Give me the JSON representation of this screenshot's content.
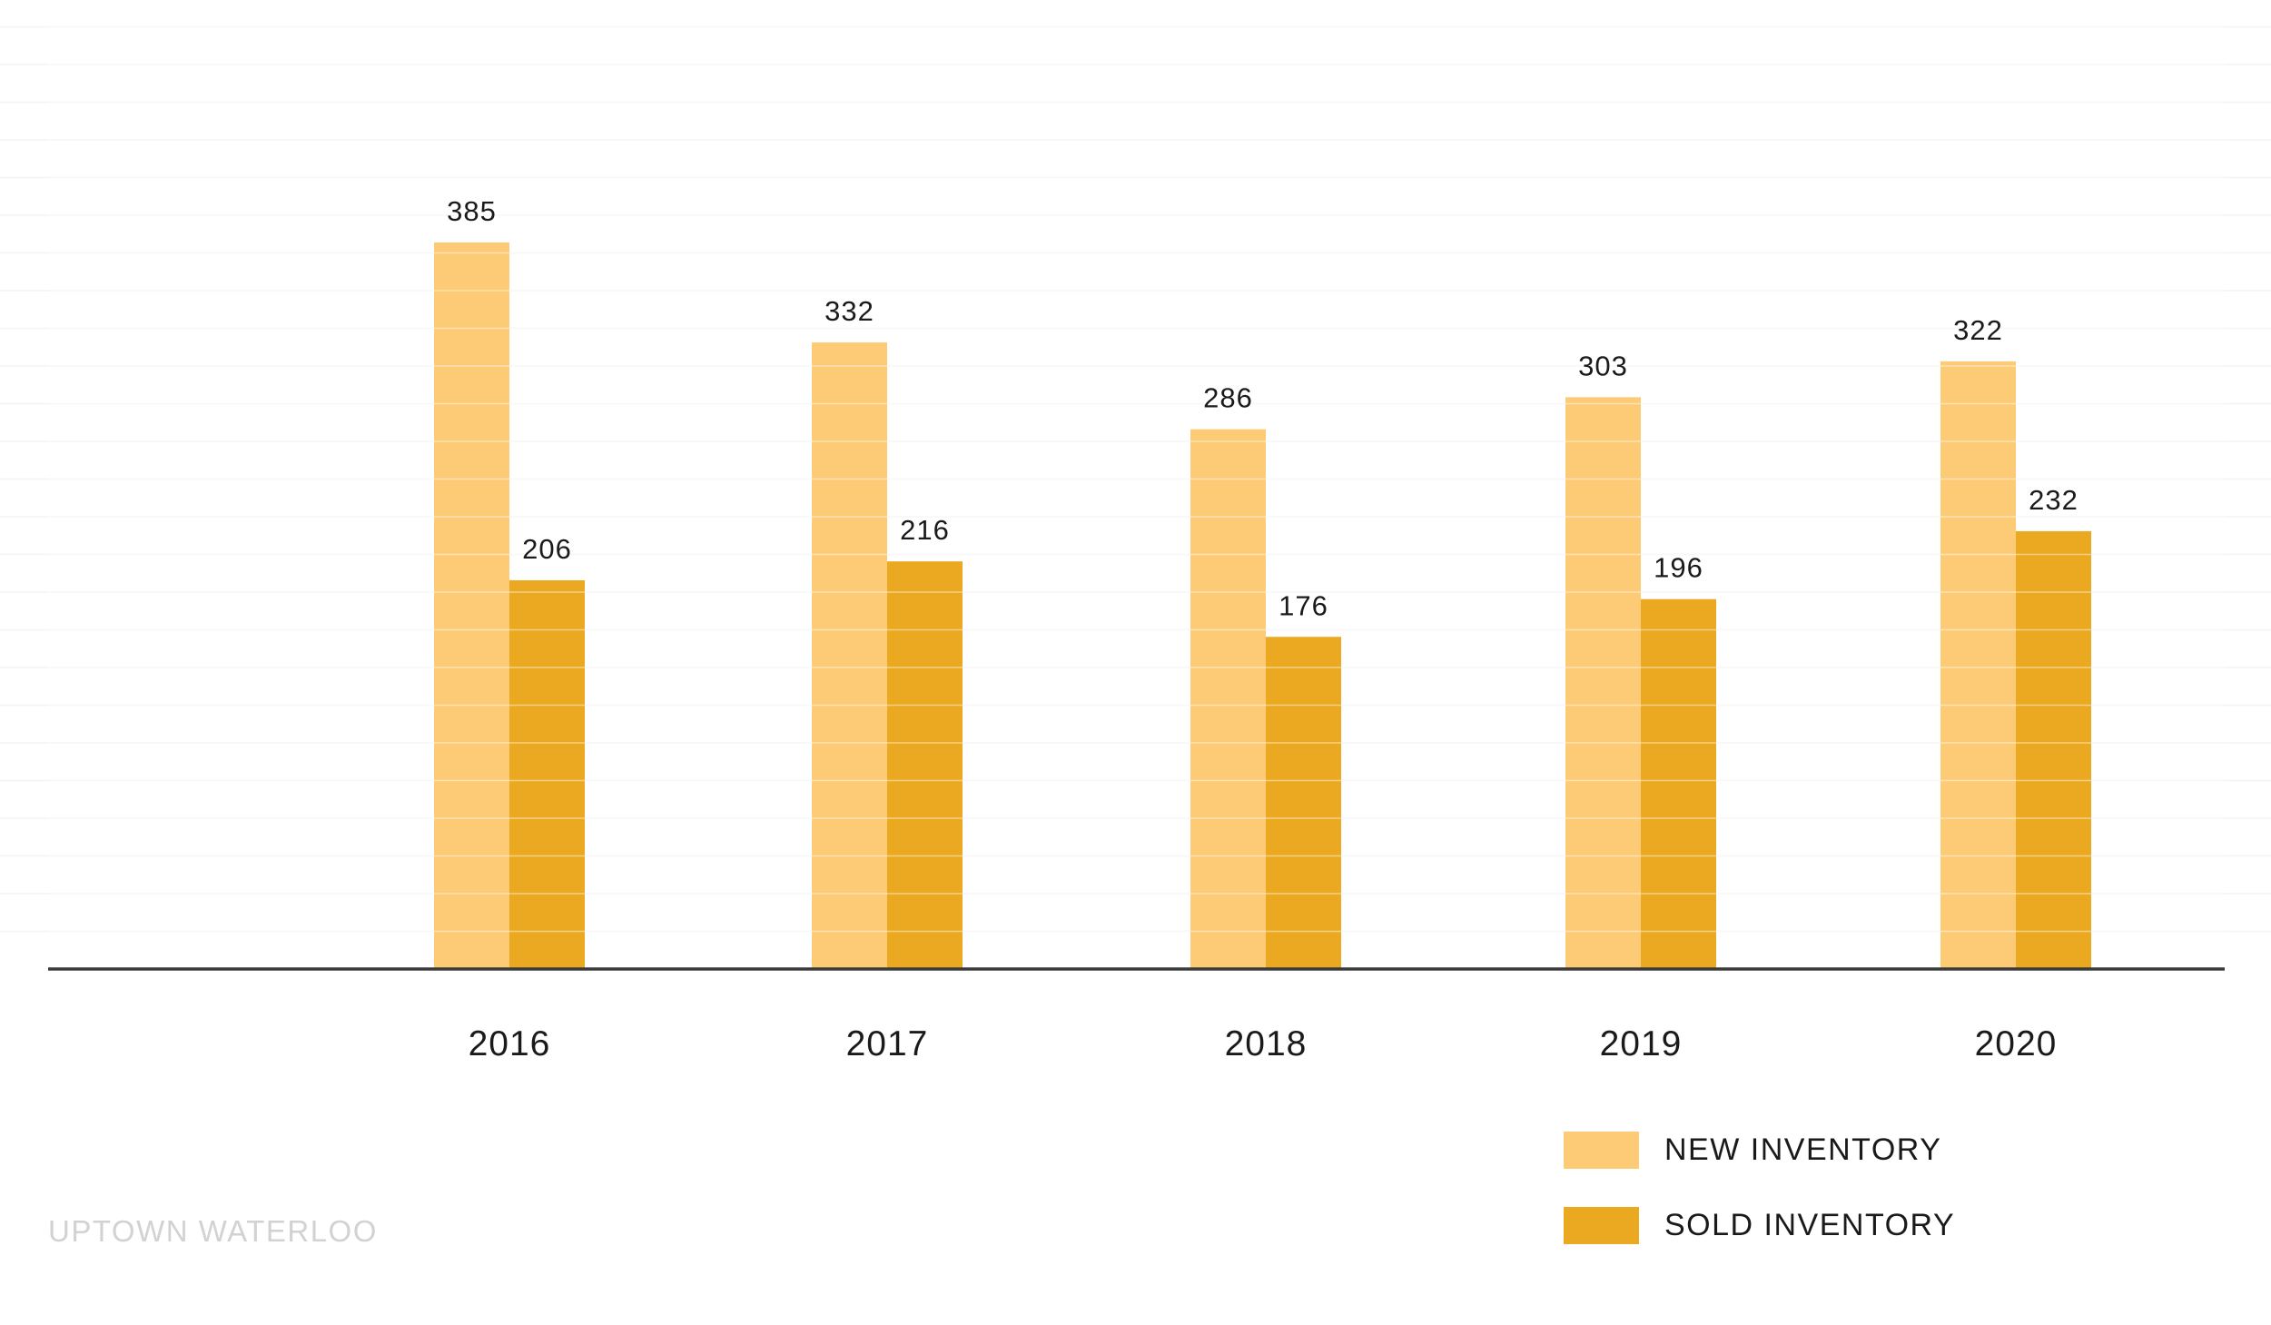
{
  "chart_data": {
    "type": "bar",
    "categories": [
      "2016",
      "2017",
      "2018",
      "2019",
      "2020"
    ],
    "series": [
      {
        "name": "NEW INVENTORY",
        "values": [
          385,
          332,
          286,
          303,
          322
        ],
        "color": "#fdcb76"
      },
      {
        "name": "SOLD INVENTORY",
        "values": [
          206,
          216,
          176,
          196,
          232
        ],
        "color": "#eba922"
      }
    ],
    "title": "",
    "xlabel": "",
    "ylabel": "",
    "ylim": [
      0,
      500
    ],
    "grid": true,
    "legend_position": "bottom-right",
    "data_labels": true
  },
  "watermark": "UPTOWN WATERLOO",
  "colors": {
    "axis": "#3a3a3a",
    "grid": "#f3f3f3",
    "text": "#1a1a1a",
    "watermark": "#d2d2d2"
  }
}
